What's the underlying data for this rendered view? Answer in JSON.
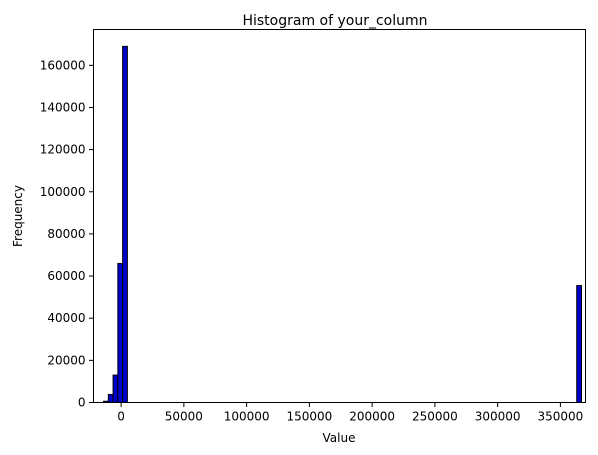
{
  "chart_data": {
    "type": "bar",
    "title": "Histogram of your_column",
    "xlabel": "Value",
    "ylabel": "Frequency",
    "xlim": [
      -22000,
      370000
    ],
    "ylim": [
      0,
      177000
    ],
    "xticks": [
      0,
      50000,
      100000,
      150000,
      200000,
      250000,
      300000,
      350000
    ],
    "yticks": [
      0,
      20000,
      40000,
      60000,
      80000,
      100000,
      120000,
      140000,
      160000
    ],
    "bin_width": 3800,
    "bins": [
      {
        "x": -14000,
        "value": 600
      },
      {
        "x": -10200,
        "value": 3800
      },
      {
        "x": -6400,
        "value": 13000
      },
      {
        "x": -2600,
        "value": 66000
      },
      {
        "x": 1200,
        "value": 169000
      },
      {
        "x": 363000,
        "value": 55500
      }
    ],
    "bar_color": "#0000cd",
    "edge_color": "#000000",
    "grid": false,
    "legend": "none"
  }
}
